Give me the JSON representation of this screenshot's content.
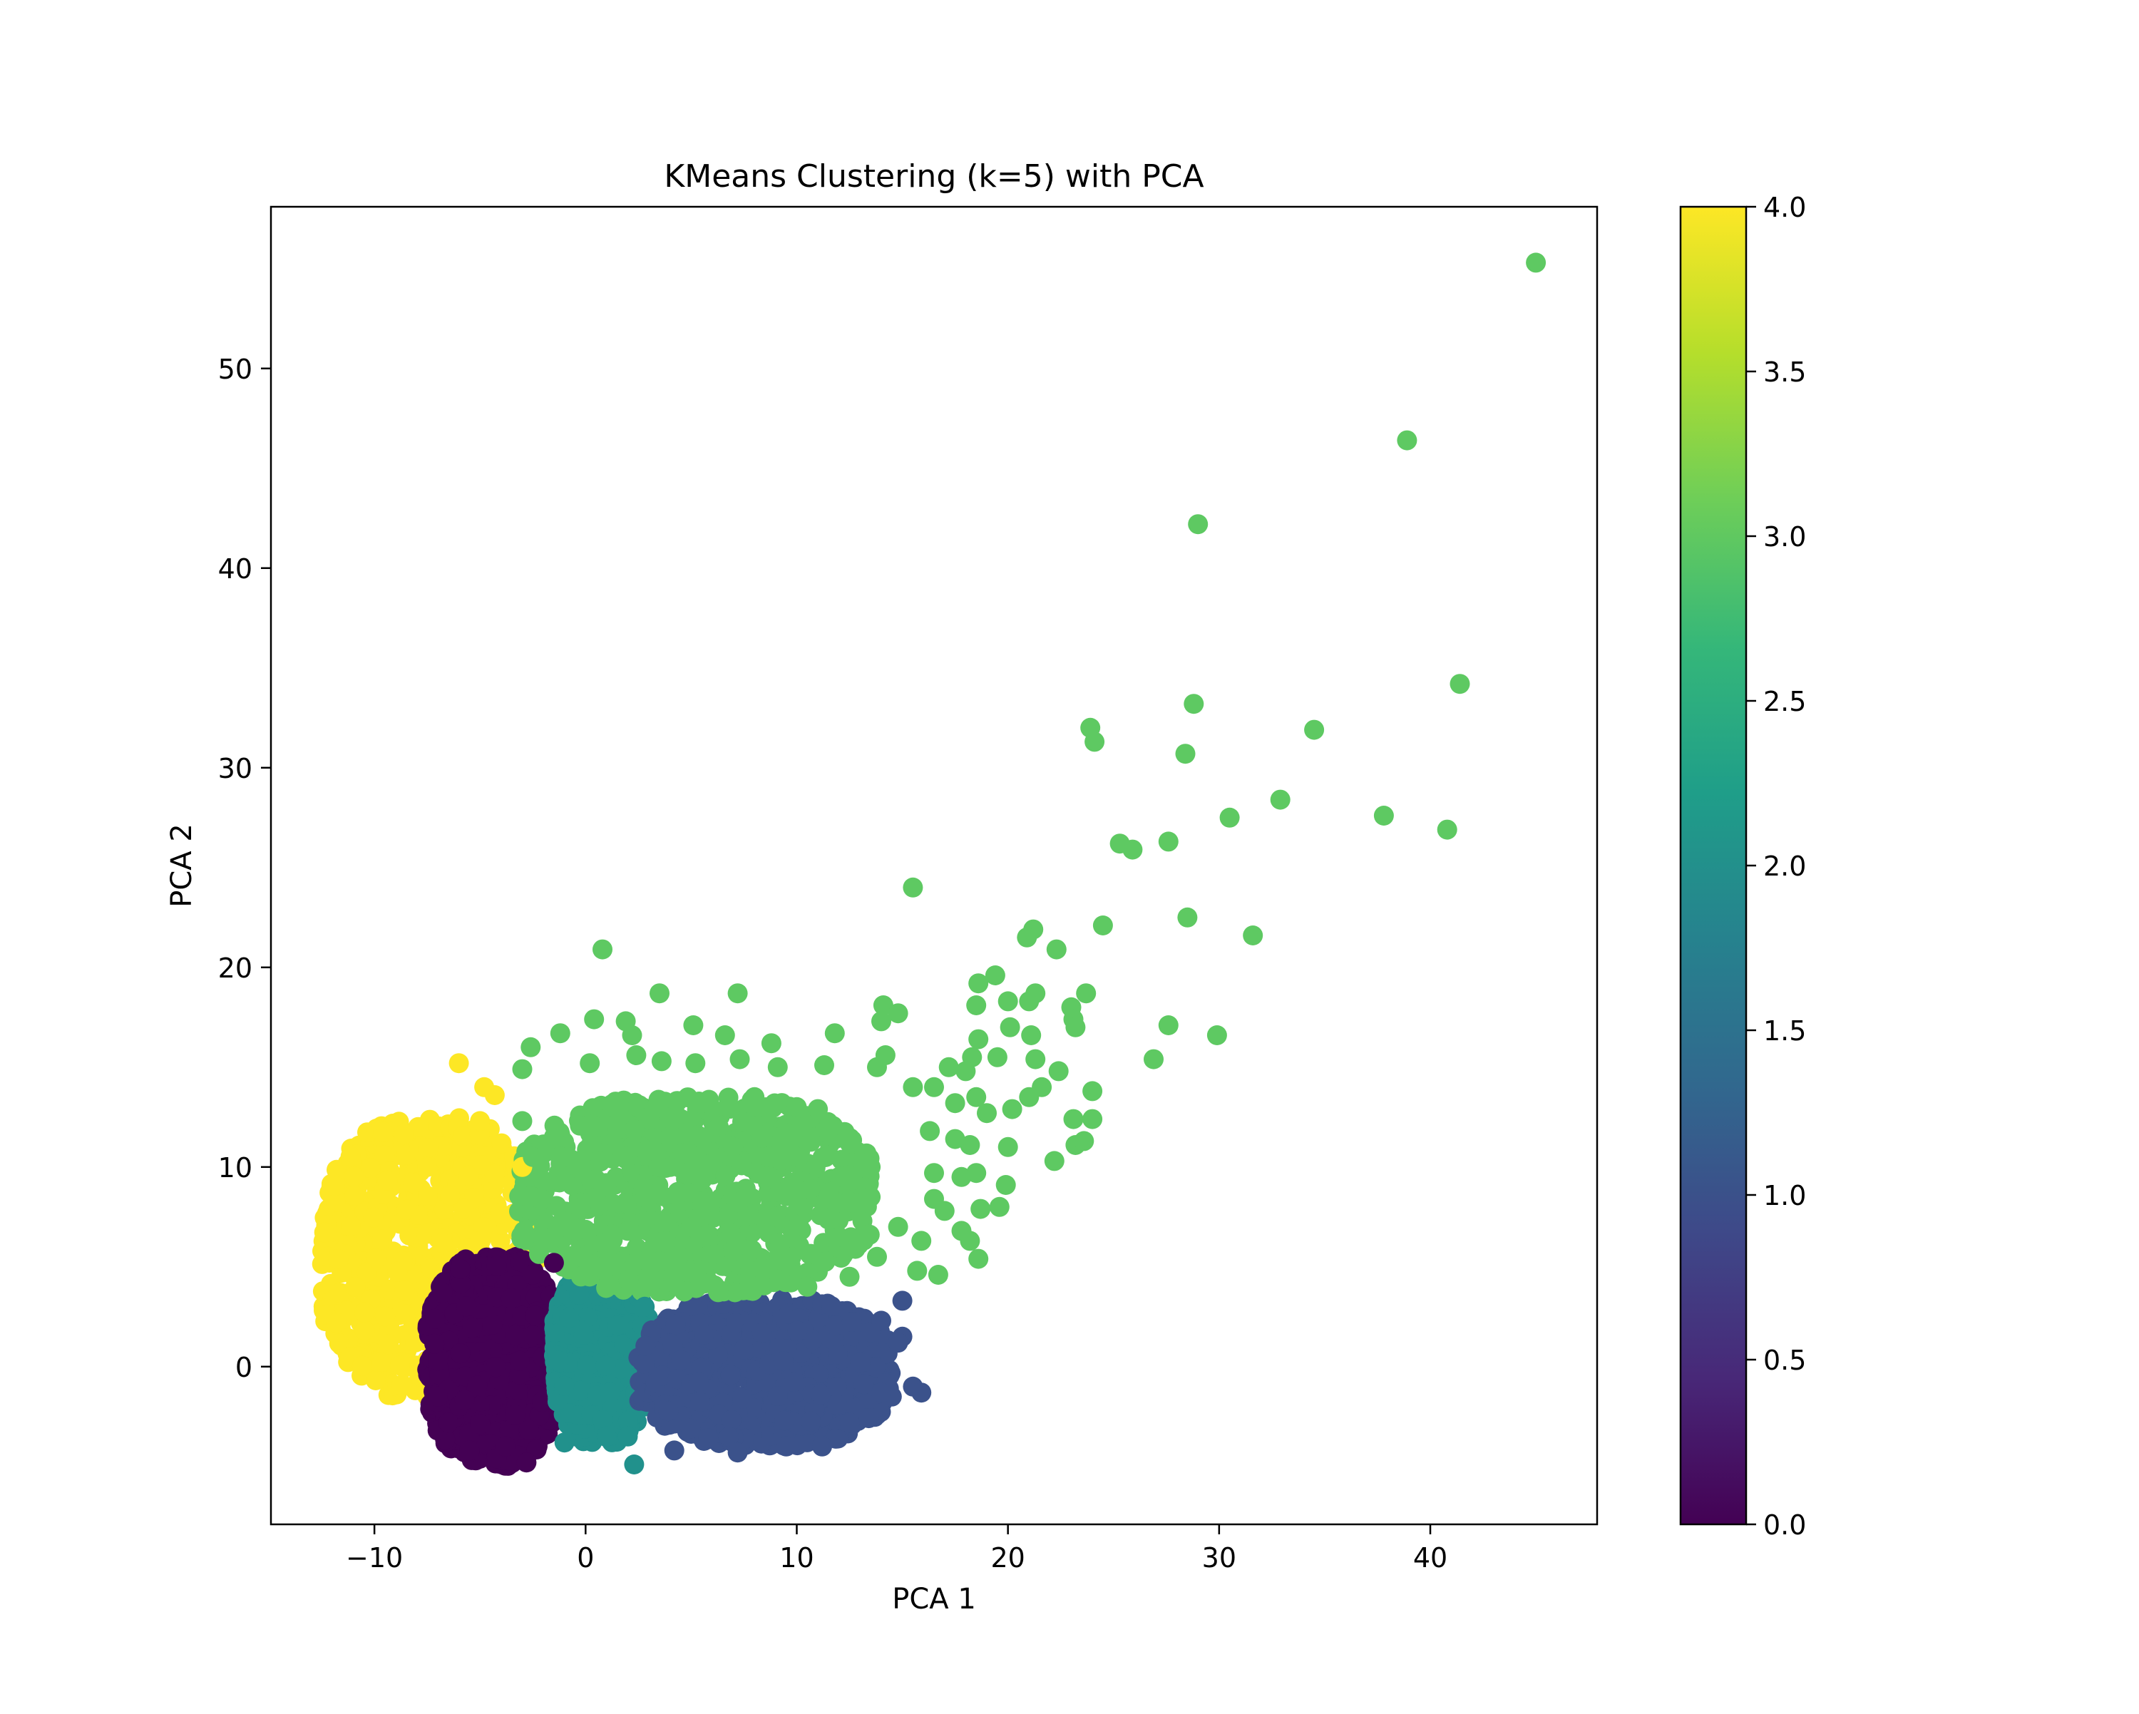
{
  "chart_data": {
    "type": "scatter",
    "title": "KMeans Clustering (k=5) with PCA",
    "xlabel": "PCA 1",
    "ylabel": "PCA 2",
    "xlim": [
      -14.9,
      47.9
    ],
    "ylim": [
      -7.9,
      58.1
    ],
    "xticks": [
      -10,
      0,
      10,
      20,
      30,
      40
    ],
    "xtick_labels": [
      "−10",
      "0",
      "10",
      "20",
      "30",
      "40"
    ],
    "yticks": [
      0,
      10,
      20,
      30,
      40,
      50
    ],
    "ytick_labels": [
      "0",
      "10",
      "20",
      "30",
      "40",
      "50"
    ],
    "grid": false,
    "colorbar": {
      "colormap": "viridis",
      "range": [
        0.0,
        4.0
      ],
      "ticks": [
        0.0,
        0.5,
        1.0,
        1.5,
        2.0,
        2.5,
        3.0,
        3.5,
        4.0
      ],
      "tick_labels": [
        "0.0",
        "0.5",
        "1.0",
        "1.5",
        "2.0",
        "2.5",
        "3.0",
        "3.5",
        "4.0"
      ],
      "colors": [
        "#440154",
        "#482878",
        "#3e4989",
        "#31688e",
        "#26828e",
        "#1f9e89",
        "#35b779",
        "#6ece58",
        "#b5de2b",
        "#fde725"
      ]
    },
    "cluster_colors": {
      "0": "#440154",
      "1": "#3b528b",
      "2": "#21918c",
      "3": "#5ec962",
      "4": "#fde725"
    },
    "clusters": [
      {
        "cluster": 4,
        "color": "#fde725",
        "region": {
          "x": [
            -12.5,
            -2.2
          ],
          "y": [
            -1.5,
            12.5
          ]
        },
        "points": [
          [
            -6,
            15.2
          ],
          [
            -4.8,
            14
          ],
          [
            -4.3,
            13.6
          ],
          [
            -5,
            12.3
          ],
          [
            -11.8,
            2.2
          ],
          [
            -3,
            10
          ],
          [
            -7.5,
            10
          ]
        ]
      },
      {
        "cluster": 0,
        "color": "#440154",
        "region": {
          "x": [
            -7.5,
            -1.2
          ],
          "y": [
            -5,
            5.5
          ]
        },
        "points": [
          [
            -5.5,
            -4.2
          ],
          [
            -4.2,
            -4.6
          ],
          [
            -2.8,
            -4.8
          ],
          [
            -3.8,
            -4
          ],
          [
            -1.5,
            5.2
          ],
          [
            -2.5,
            4.6
          ],
          [
            -7,
            -1.5
          ],
          [
            -6.5,
            -2.8
          ]
        ]
      },
      {
        "cluster": 2,
        "color": "#21918c",
        "region": {
          "x": [
            -1.5,
            3
          ],
          "y": [
            -3.8,
            5
          ]
        },
        "points": [
          [
            2.3,
            -4.9
          ],
          [
            -1,
            -3.8
          ],
          [
            1,
            -3.5
          ],
          [
            2,
            -3.5
          ],
          [
            -1.3,
            0.3
          ],
          [
            2.8,
            3
          ]
        ]
      },
      {
        "cluster": 1,
        "color": "#3b528b",
        "region": {
          "x": [
            2.5,
            14.5
          ],
          "y": [
            -4,
            3.4
          ]
        },
        "points": [
          [
            4.2,
            -4.2
          ],
          [
            7.2,
            -4.3
          ],
          [
            9.5,
            -4
          ],
          [
            11.2,
            -4
          ],
          [
            15,
            3.3
          ],
          [
            14,
            2.3
          ],
          [
            15,
            1.5
          ],
          [
            14.8,
            1.2
          ],
          [
            15.5,
            -1
          ],
          [
            14.5,
            -1.5
          ],
          [
            15.9,
            -1.3
          ],
          [
            14,
            -1.3
          ],
          [
            13,
            0.2
          ],
          [
            12.5,
            -2.8
          ]
        ]
      },
      {
        "cluster": 3,
        "color": "#5ec962",
        "region": {
          "x": [
            -3.2,
            13.5
          ],
          "y": [
            3.6,
            13.5
          ]
        },
        "points": [
          [
            45,
            55.3
          ],
          [
            38.9,
            46.4
          ],
          [
            29,
            42.2
          ],
          [
            41.4,
            34.2
          ],
          [
            28.8,
            33.2
          ],
          [
            34.5,
            31.9
          ],
          [
            23.9,
            32
          ],
          [
            24.1,
            31.3
          ],
          [
            28.4,
            30.7
          ],
          [
            32.9,
            28.4
          ],
          [
            30.5,
            27.5
          ],
          [
            37.8,
            27.6
          ],
          [
            40.8,
            26.9
          ],
          [
            25.3,
            26.2
          ],
          [
            25.9,
            25.9
          ],
          [
            27.6,
            26.3
          ],
          [
            15.5,
            24
          ],
          [
            28.5,
            22.5
          ],
          [
            31.6,
            21.6
          ],
          [
            24.5,
            22.1
          ],
          [
            21.2,
            21.9
          ],
          [
            20.9,
            21.5
          ],
          [
            22.3,
            20.9
          ],
          [
            0.8,
            20.9
          ],
          [
            3.5,
            18.7
          ],
          [
            7.2,
            18.7
          ],
          [
            19.4,
            19.6
          ],
          [
            18.6,
            19.2
          ],
          [
            23.7,
            18.7
          ],
          [
            21,
            18.3
          ],
          [
            21.3,
            18.7
          ],
          [
            20,
            18.3
          ],
          [
            18.5,
            18.1
          ],
          [
            23,
            18
          ],
          [
            14.1,
            18.1
          ],
          [
            14.8,
            17.7
          ],
          [
            14,
            17.3
          ],
          [
            23.1,
            17.4
          ],
          [
            27.6,
            17.1
          ],
          [
            23.2,
            17
          ],
          [
            20.1,
            17
          ],
          [
            21.1,
            16.6
          ],
          [
            15.5,
            14
          ],
          [
            0.4,
            17.4
          ],
          [
            1.9,
            17.3
          ],
          [
            2.2,
            16.6
          ],
          [
            5.1,
            17.1
          ],
          [
            6.6,
            16.6
          ],
          [
            8.8,
            16.2
          ],
          [
            11.8,
            16.7
          ],
          [
            29.9,
            16.6
          ],
          [
            18.6,
            16.4
          ],
          [
            26.9,
            15.4
          ],
          [
            -1.2,
            16.7
          ],
          [
            -2.6,
            16
          ],
          [
            -3,
            14.9
          ],
          [
            0.2,
            15.2
          ],
          [
            2.4,
            15.6
          ],
          [
            3.6,
            15.3
          ],
          [
            5.2,
            15.2
          ],
          [
            7.3,
            15.4
          ],
          [
            9.1,
            15
          ],
          [
            11.3,
            15.1
          ],
          [
            14.2,
            15.6
          ],
          [
            13.8,
            15
          ],
          [
            17.2,
            15
          ],
          [
            18.3,
            15.5
          ],
          [
            19.5,
            15.5
          ],
          [
            21.3,
            15.4
          ],
          [
            22.4,
            14.8
          ],
          [
            18,
            14.8
          ],
          [
            18.5,
            13.5
          ],
          [
            20.2,
            12.9
          ],
          [
            21,
            13.5
          ],
          [
            24,
            13.8
          ],
          [
            21.6,
            14
          ],
          [
            16.5,
            14
          ],
          [
            17.5,
            13.2
          ],
          [
            19,
            12.7
          ],
          [
            23.1,
            12.4
          ],
          [
            24,
            12.4
          ],
          [
            20,
            11
          ],
          [
            16.3,
            11.8
          ],
          [
            17.5,
            11.4
          ],
          [
            18.2,
            11.1
          ],
          [
            22.2,
            10.3
          ],
          [
            23.2,
            11.1
          ],
          [
            23.6,
            11.3
          ],
          [
            16.5,
            9.7
          ],
          [
            17.8,
            9.5
          ],
          [
            18.5,
            9.7
          ],
          [
            19.9,
            9.1
          ],
          [
            16.5,
            8.4
          ],
          [
            17,
            7.8
          ],
          [
            18.7,
            7.9
          ],
          [
            19.6,
            8
          ],
          [
            17.8,
            6.8
          ],
          [
            18.2,
            6.3
          ],
          [
            18.6,
            5.4
          ],
          [
            16.7,
            4.6
          ],
          [
            15.7,
            4.8
          ],
          [
            15.9,
            6.3
          ],
          [
            13.5,
            10
          ],
          [
            12.5,
            11.2
          ],
          [
            11,
            12.9
          ],
          [
            10,
            13
          ],
          [
            8,
            13.5
          ],
          [
            5.5,
            13.2
          ],
          [
            3,
            12.5
          ],
          [
            0.5,
            12
          ],
          [
            -1.5,
            11.5
          ],
          [
            -2.5,
            10.5
          ],
          [
            -3,
            12.3
          ],
          [
            -2.5,
            8.5
          ],
          [
            -1.5,
            6.5
          ],
          [
            0.5,
            5
          ],
          [
            3,
            4.5
          ],
          [
            5.5,
            4.2
          ],
          [
            8,
            4
          ],
          [
            10.5,
            4
          ],
          [
            12.5,
            4.5
          ],
          [
            13.8,
            5.5
          ],
          [
            14.8,
            7
          ],
          [
            13.5,
            8.5
          ],
          [
            12,
            9.5
          ],
          [
            10,
            10.5
          ],
          [
            7,
            11
          ],
          [
            4,
            10
          ],
          [
            1,
            9
          ],
          [
            5,
            7
          ],
          [
            9,
            7.5
          ],
          [
            12,
            6.5
          ],
          [
            7,
            5.8
          ],
          [
            2,
            6.8
          ]
        ]
      }
    ]
  }
}
